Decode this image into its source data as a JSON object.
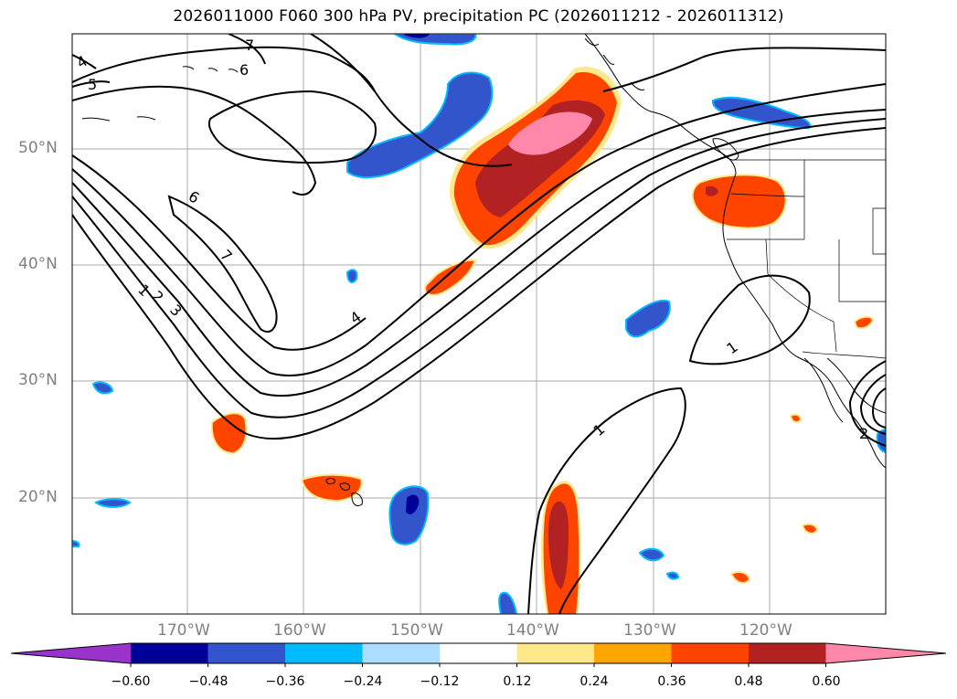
{
  "title": "2026011000 F060 300 hPa PV, precipitation PC (2026011212 - 2026011312)",
  "map": {
    "lat_labels": [
      "50°N",
      "40°N",
      "30°N",
      "20°N"
    ],
    "lon_labels": [
      "170°W",
      "160°W",
      "150°W",
      "140°W",
      "130°W",
      "120°W"
    ],
    "contour_labels": [
      "4",
      "5",
      "6",
      "7",
      "6",
      "7",
      "1",
      "2",
      "3",
      "4",
      "1",
      "1",
      "2"
    ]
  },
  "colorbar": {
    "tick_labels": [
      "−0.60",
      "−0.48",
      "−0.36",
      "−0.24",
      "−0.12",
      "0.12",
      "0.24",
      "0.36",
      "0.48",
      "0.60"
    ],
    "colors": [
      "#9933cc",
      "#000099",
      "#3355cc",
      "#00bbff",
      "#aaddff",
      "#ffffff",
      "#ffe88a",
      "#ffa500",
      "#ff4400",
      "#b22222",
      "#ff88aa"
    ]
  },
  "colors": {
    "grid": "#aaaaaa",
    "coast": "#000000",
    "contour": "#000000"
  }
}
